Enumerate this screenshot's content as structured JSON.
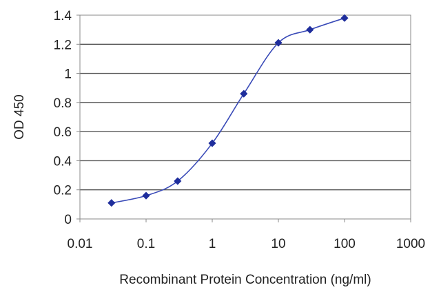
{
  "chart_data": {
    "type": "line",
    "title": "",
    "xlabel": "Recombinant Protein Concentration (ng/ml)",
    "ylabel": "OD 450",
    "x_scale": "log",
    "xlim": [
      0.01,
      1000
    ],
    "ylim": [
      0,
      1.4
    ],
    "x_ticks": [
      0.01,
      0.1,
      1,
      10,
      100,
      1000
    ],
    "x_tick_labels": [
      "0.01",
      "0.1",
      "1",
      "10",
      "100",
      "1000"
    ],
    "y_ticks": [
      0,
      0.2,
      0.4,
      0.6,
      0.8,
      1,
      1.2,
      1.4
    ],
    "y_tick_labels": [
      "0",
      "0.2",
      "0.4",
      "0.6",
      "0.8",
      "1",
      "1.2",
      "1.4"
    ],
    "grid": "horizontal",
    "legend": "none",
    "series": [
      {
        "x": [
          0.03,
          0.1,
          0.3,
          1,
          3,
          10,
          30,
          100
        ],
        "y": [
          0.11,
          0.16,
          0.26,
          0.52,
          0.86,
          1.21,
          1.3,
          1.38
        ]
      }
    ],
    "colors": {
      "line": "#3a4bb8",
      "marker": "#1f2e9c",
      "grid": "#555555",
      "axis": "#888888",
      "text": "#222222"
    }
  }
}
